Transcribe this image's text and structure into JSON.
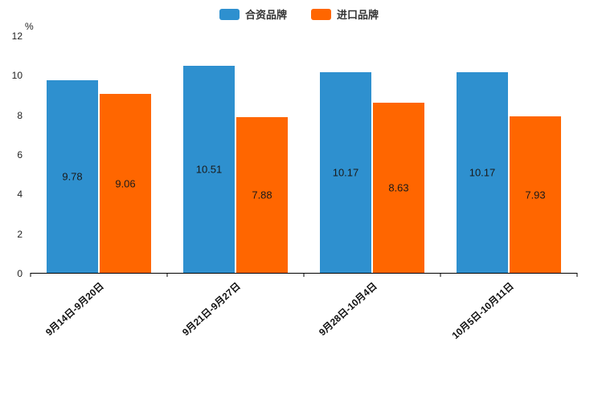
{
  "chart_data": {
    "type": "bar",
    "title": "",
    "ylabel": "%",
    "xlabel": "",
    "ylim": [
      0,
      12
    ],
    "yticks": [
      0,
      2,
      4,
      6,
      8,
      10,
      12
    ],
    "grid": false,
    "legend_position": "top",
    "categories": [
      "9月14日-9月20日",
      "9月21日-9月27日",
      "9月28日-10月4日",
      "10月5日-10月11日"
    ],
    "series": [
      {
        "name": "合资品牌",
        "color": "#2E90CF",
        "values": [
          9.78,
          10.51,
          10.17,
          10.17
        ]
      },
      {
        "name": "进口品牌",
        "color": "#FF6600",
        "values": [
          9.06,
          7.88,
          8.63,
          7.93
        ]
      }
    ],
    "value_label_decimals": 2
  }
}
